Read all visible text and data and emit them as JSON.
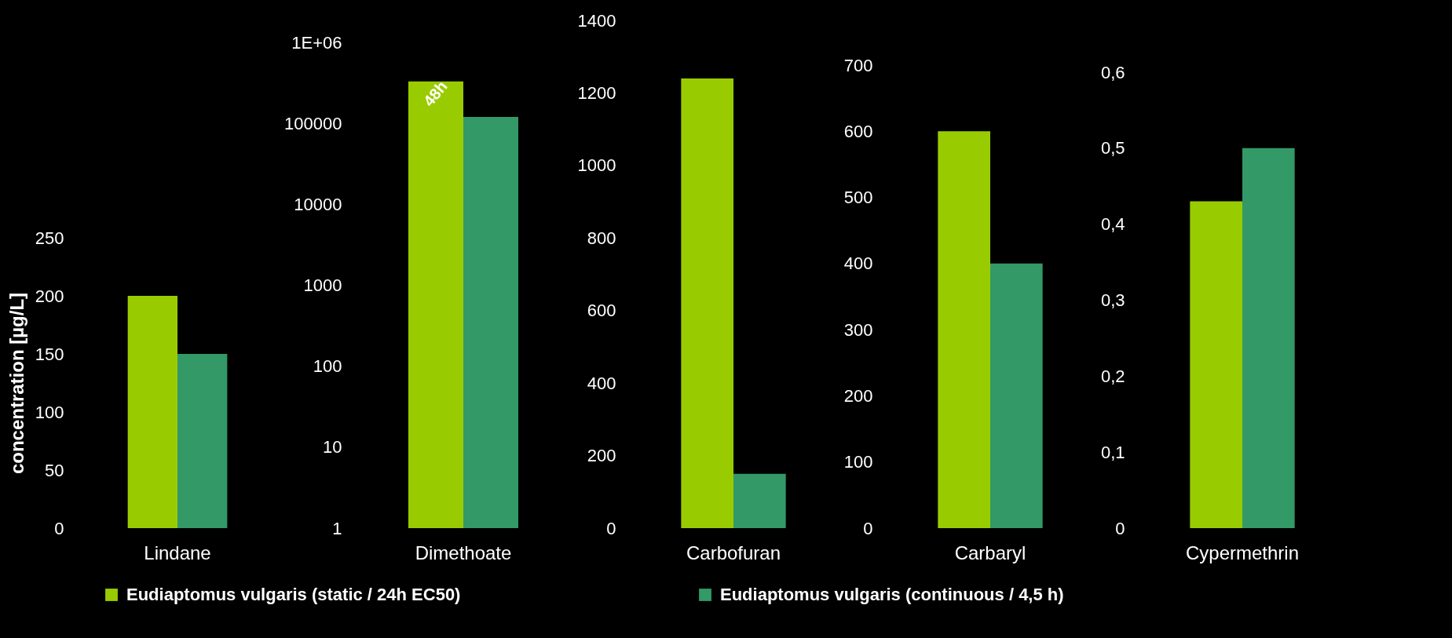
{
  "chart_data": [
    {
      "type": "bar",
      "categories": [
        "Lindane"
      ],
      "ylabel": "concentration [µg/L]",
      "ylim": [
        0,
        250
      ],
      "yticks": [
        0,
        50,
        100,
        150,
        200,
        250
      ],
      "legend": "bottom",
      "series": [
        {
          "name": "Eudiaptomus vulgaris (static / 24h EC50)",
          "color": "#99cc00",
          "values": [
            200
          ]
        },
        {
          "name": "Eudiaptomus vulgaris (continuous / 4,5 h)",
          "color": "#339966",
          "values": [
            150
          ]
        }
      ]
    },
    {
      "type": "bar",
      "categories": [
        "Dimethoate"
      ],
      "log": true,
      "ylim": [
        1,
        1000000
      ],
      "yticks": [
        1,
        10,
        100,
        1000,
        10000,
        100000,
        {
          "value": 1000000,
          "label": "1E+06"
        }
      ],
      "annotations": [
        {
          "text": "48h",
          "x": "Dimethoate",
          "y": 230000
        }
      ],
      "series": [
        {
          "color": "#99cc00",
          "values": [
            330000
          ]
        },
        {
          "color": "#339966",
          "values": [
            120000
          ]
        }
      ]
    },
    {
      "type": "bar",
      "categories": [
        "Carbofuran"
      ],
      "ylim": [
        0,
        1400
      ],
      "yticks": [
        0,
        200,
        400,
        600,
        800,
        1000,
        1200,
        1400
      ],
      "series": [
        {
          "color": "#99cc00",
          "values": [
            1240
          ]
        },
        {
          "color": "#339966",
          "values": [
            150
          ]
        }
      ]
    },
    {
      "type": "bar",
      "categories": [
        "Carbaryl"
      ],
      "ylim": [
        0,
        700
      ],
      "yticks": [
        0,
        100,
        200,
        300,
        400,
        500,
        600,
        700
      ],
      "series": [
        {
          "color": "#99cc00",
          "values": [
            600
          ]
        },
        {
          "color": "#339966",
          "values": [
            400
          ]
        }
      ]
    },
    {
      "type": "bar",
      "categories": [
        "Cypermethrin"
      ],
      "ylim": [
        0,
        0.6
      ],
      "yticks": [
        0,
        {
          "value": 0.1,
          "label": "0,1"
        },
        {
          "value": 0.2,
          "label": "0,2"
        },
        {
          "value": 0.3,
          "label": "0,3"
        },
        {
          "value": 0.4,
          "label": "0,4"
        },
        {
          "value": 0.5,
          "label": "0,5"
        },
        {
          "value": 0.6,
          "label": "0,6"
        }
      ],
      "series": [
        {
          "color": "#99cc00",
          "values": [
            0.43
          ]
        },
        {
          "color": "#339966",
          "values": [
            0.5
          ]
        }
      ]
    }
  ]
}
